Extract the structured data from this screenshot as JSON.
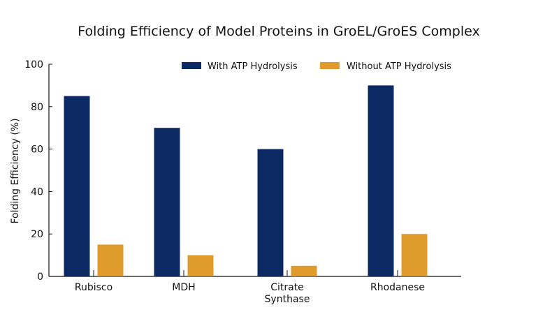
{
  "chart_data": {
    "type": "bar",
    "title": "Folding Efficiency of Model Proteins in GroEL/GroES Complex",
    "xlabel": "",
    "ylabel": "Folding Efficiency (%)",
    "ylim": [
      0,
      100
    ],
    "yticks": [
      "0",
      "20",
      "40",
      "60",
      "80",
      "100"
    ],
    "categories": [
      "Rubisco",
      "MDH",
      "Citrate\nSynthase",
      "Rhodanese"
    ],
    "series": [
      {
        "name": "With ATP Hydrolysis",
        "color": "#0b2a63",
        "values": [
          85,
          70,
          60,
          90
        ]
      },
      {
        "name": "Without ATP Hydrolysis",
        "color": "#e09b2d",
        "values": [
          15,
          10,
          5,
          20
        ]
      }
    ],
    "legend": "top-right",
    "grid": false
  }
}
